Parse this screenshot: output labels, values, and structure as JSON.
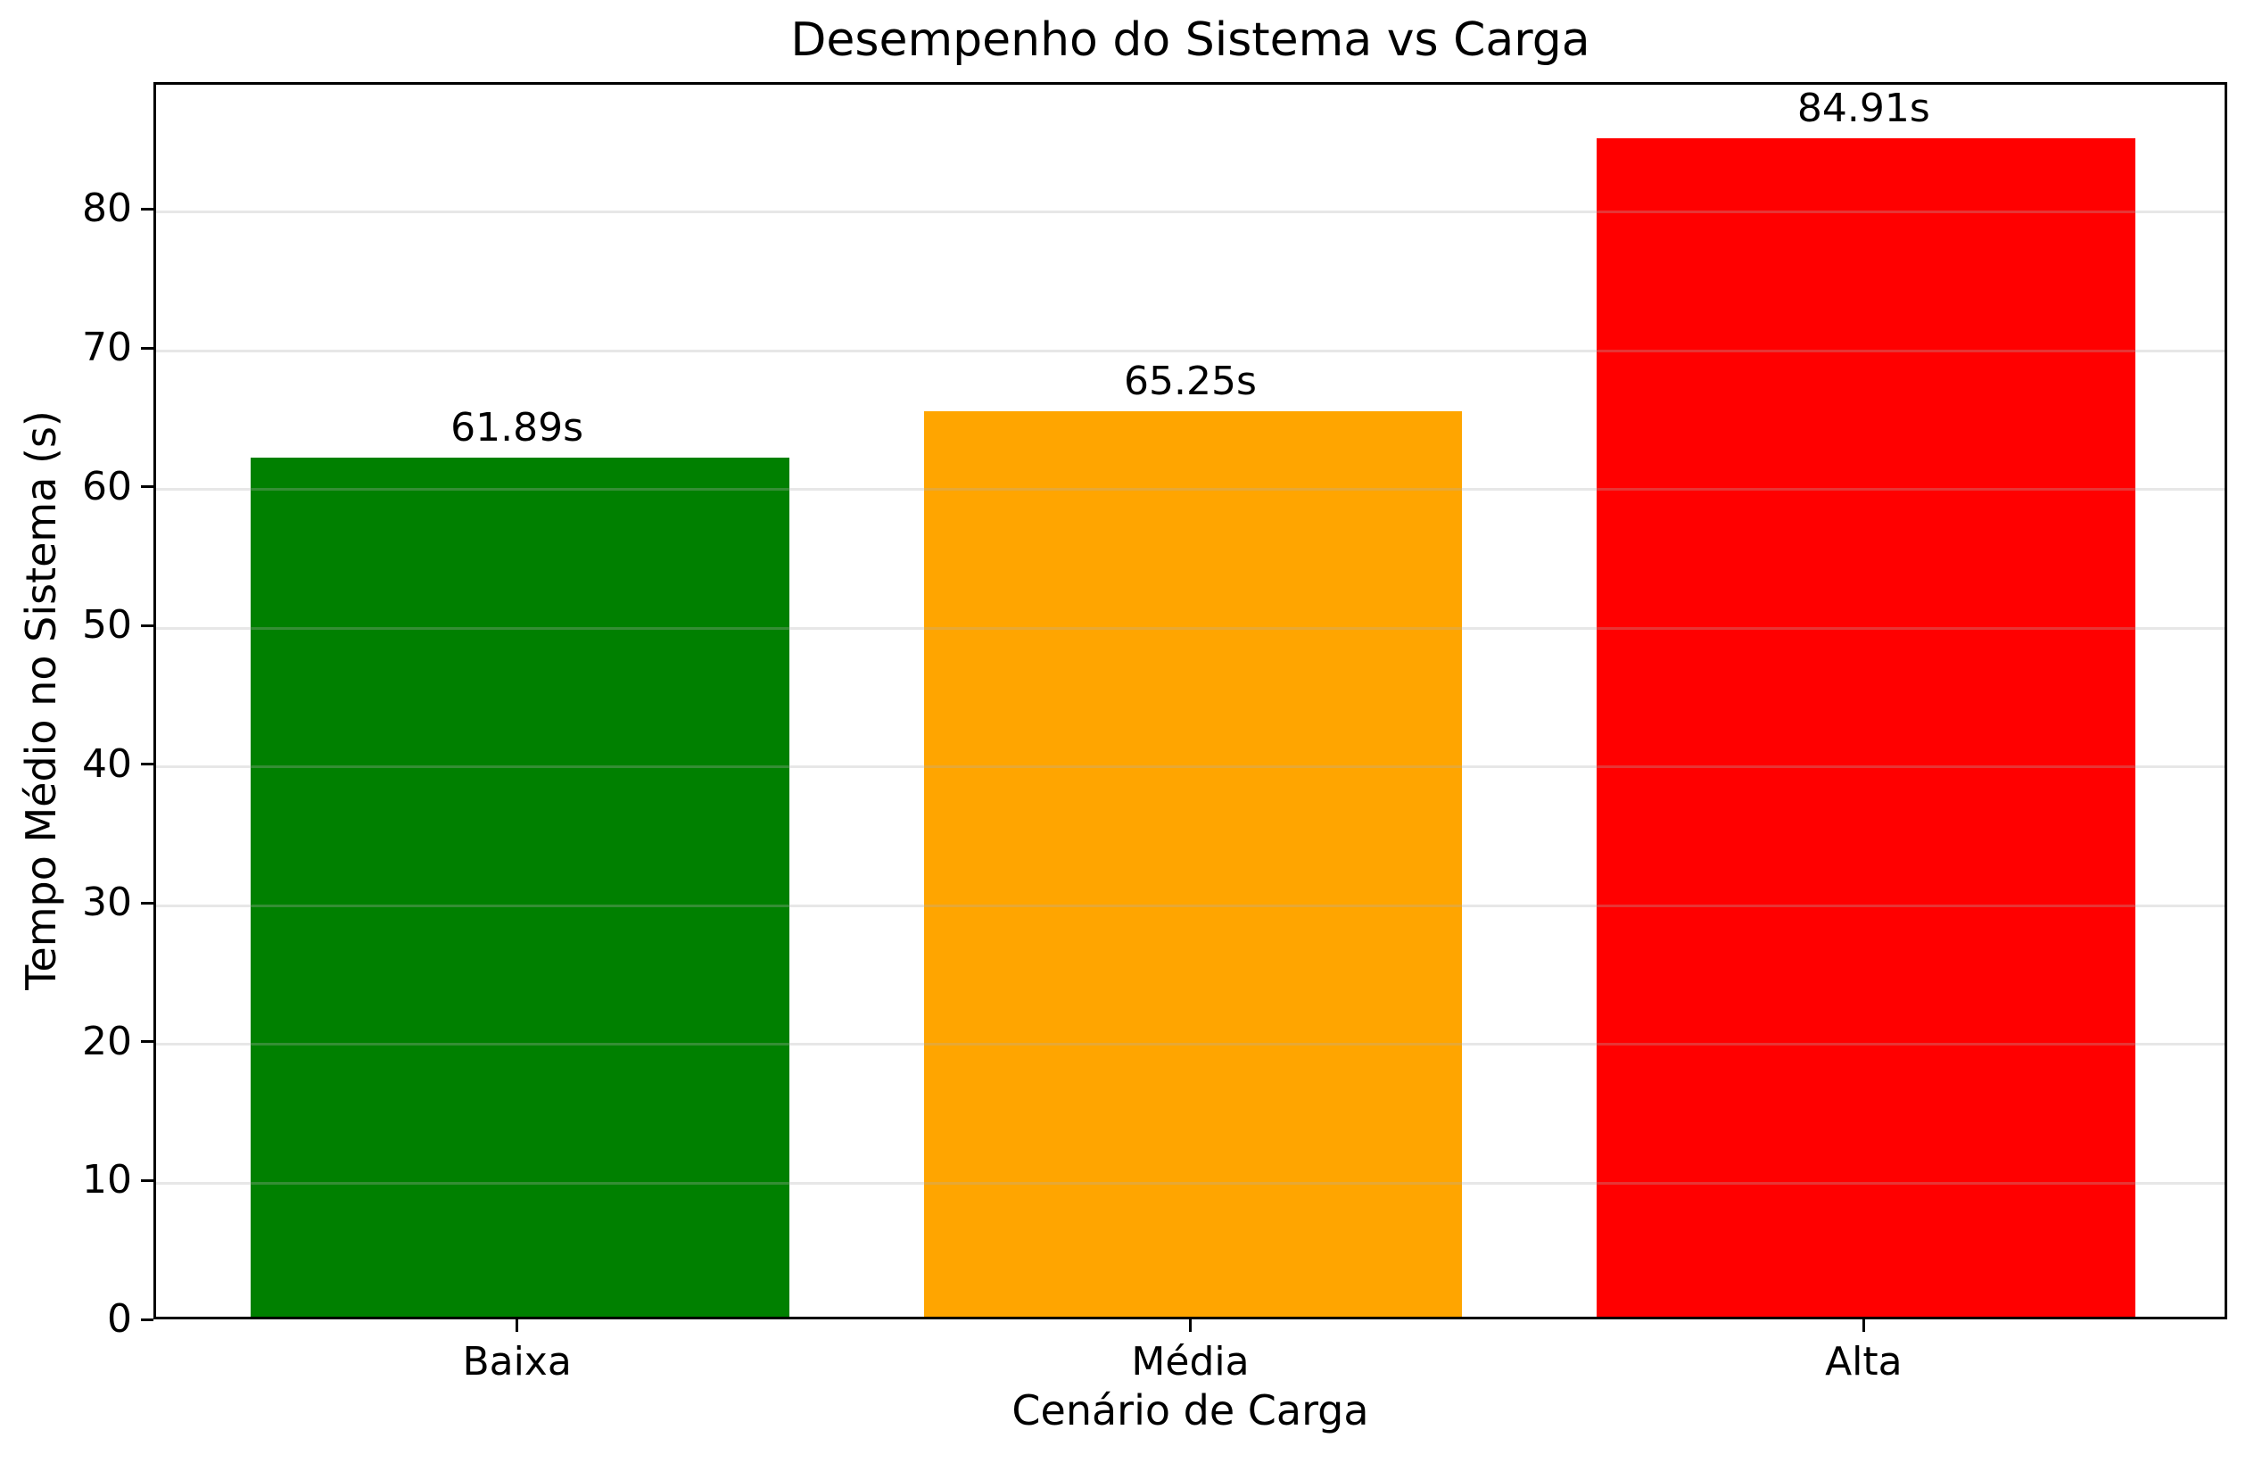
{
  "chart_data": {
    "type": "bar",
    "title": "Desempenho do Sistema vs Carga",
    "xlabel": "Cenário de Carga",
    "ylabel": "Tempo Médio no Sistema (s)",
    "categories": [
      "Baixa",
      "Média",
      "Alta"
    ],
    "values": [
      61.89,
      65.25,
      84.91
    ],
    "value_labels": [
      "61.89s",
      "65.25s",
      "84.91s"
    ],
    "bar_colors": [
      "#008000",
      "#ffa500",
      "#ff0000"
    ],
    "yticks": [
      0,
      10,
      20,
      30,
      40,
      50,
      60,
      70,
      80
    ],
    "ylim": [
      0,
      89.16
    ],
    "grid": "horizontal",
    "grid_color": "rgba(176,176,176,0.3)",
    "spine_color": "#000000",
    "legend": "none",
    "background": "#ffffff"
  }
}
